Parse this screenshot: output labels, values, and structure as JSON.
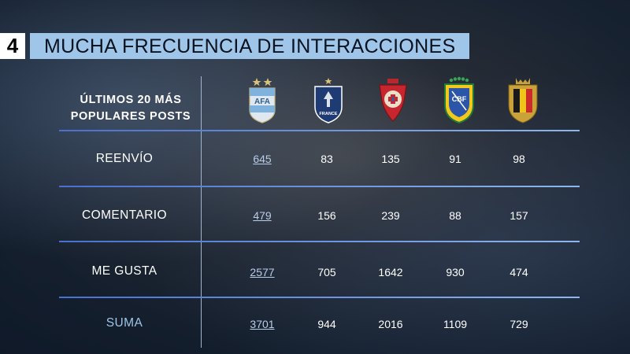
{
  "title": {
    "number": "4",
    "text": "MUCHA FRECUENCIA DE INTERACCIONES"
  },
  "table": {
    "corner_label_line1": "ÚLTIMOS 20 MÁS",
    "corner_label_line2": "POPULARES POSTS",
    "teams": [
      {
        "icon": "argentina-crest-icon",
        "crest_text": "AFA"
      },
      {
        "icon": "france-crest-icon",
        "crest_text": "FRANCE"
      },
      {
        "icon": "portugal-crest-icon"
      },
      {
        "icon": "brazil-crest-icon",
        "crest_text": "CBF"
      },
      {
        "icon": "belgium-crest-icon"
      }
    ],
    "rows": [
      {
        "label": "REENVÍO",
        "values": [
          "645",
          "83",
          "135",
          "91",
          "98"
        ]
      },
      {
        "label": "COMENTARIO",
        "values": [
          "479",
          "156",
          "239",
          "88",
          "157"
        ]
      },
      {
        "label": "ME GUSTA",
        "values": [
          "2577",
          "705",
          "1642",
          "930",
          "474"
        ]
      },
      {
        "label": "SUMA",
        "values": [
          "3701",
          "944",
          "2016",
          "1109",
          "729"
        ]
      }
    ]
  },
  "colors": {
    "accent": "#9fc6e8",
    "highlight_text": "#b8cde8",
    "divider": "#4a6fd0"
  }
}
